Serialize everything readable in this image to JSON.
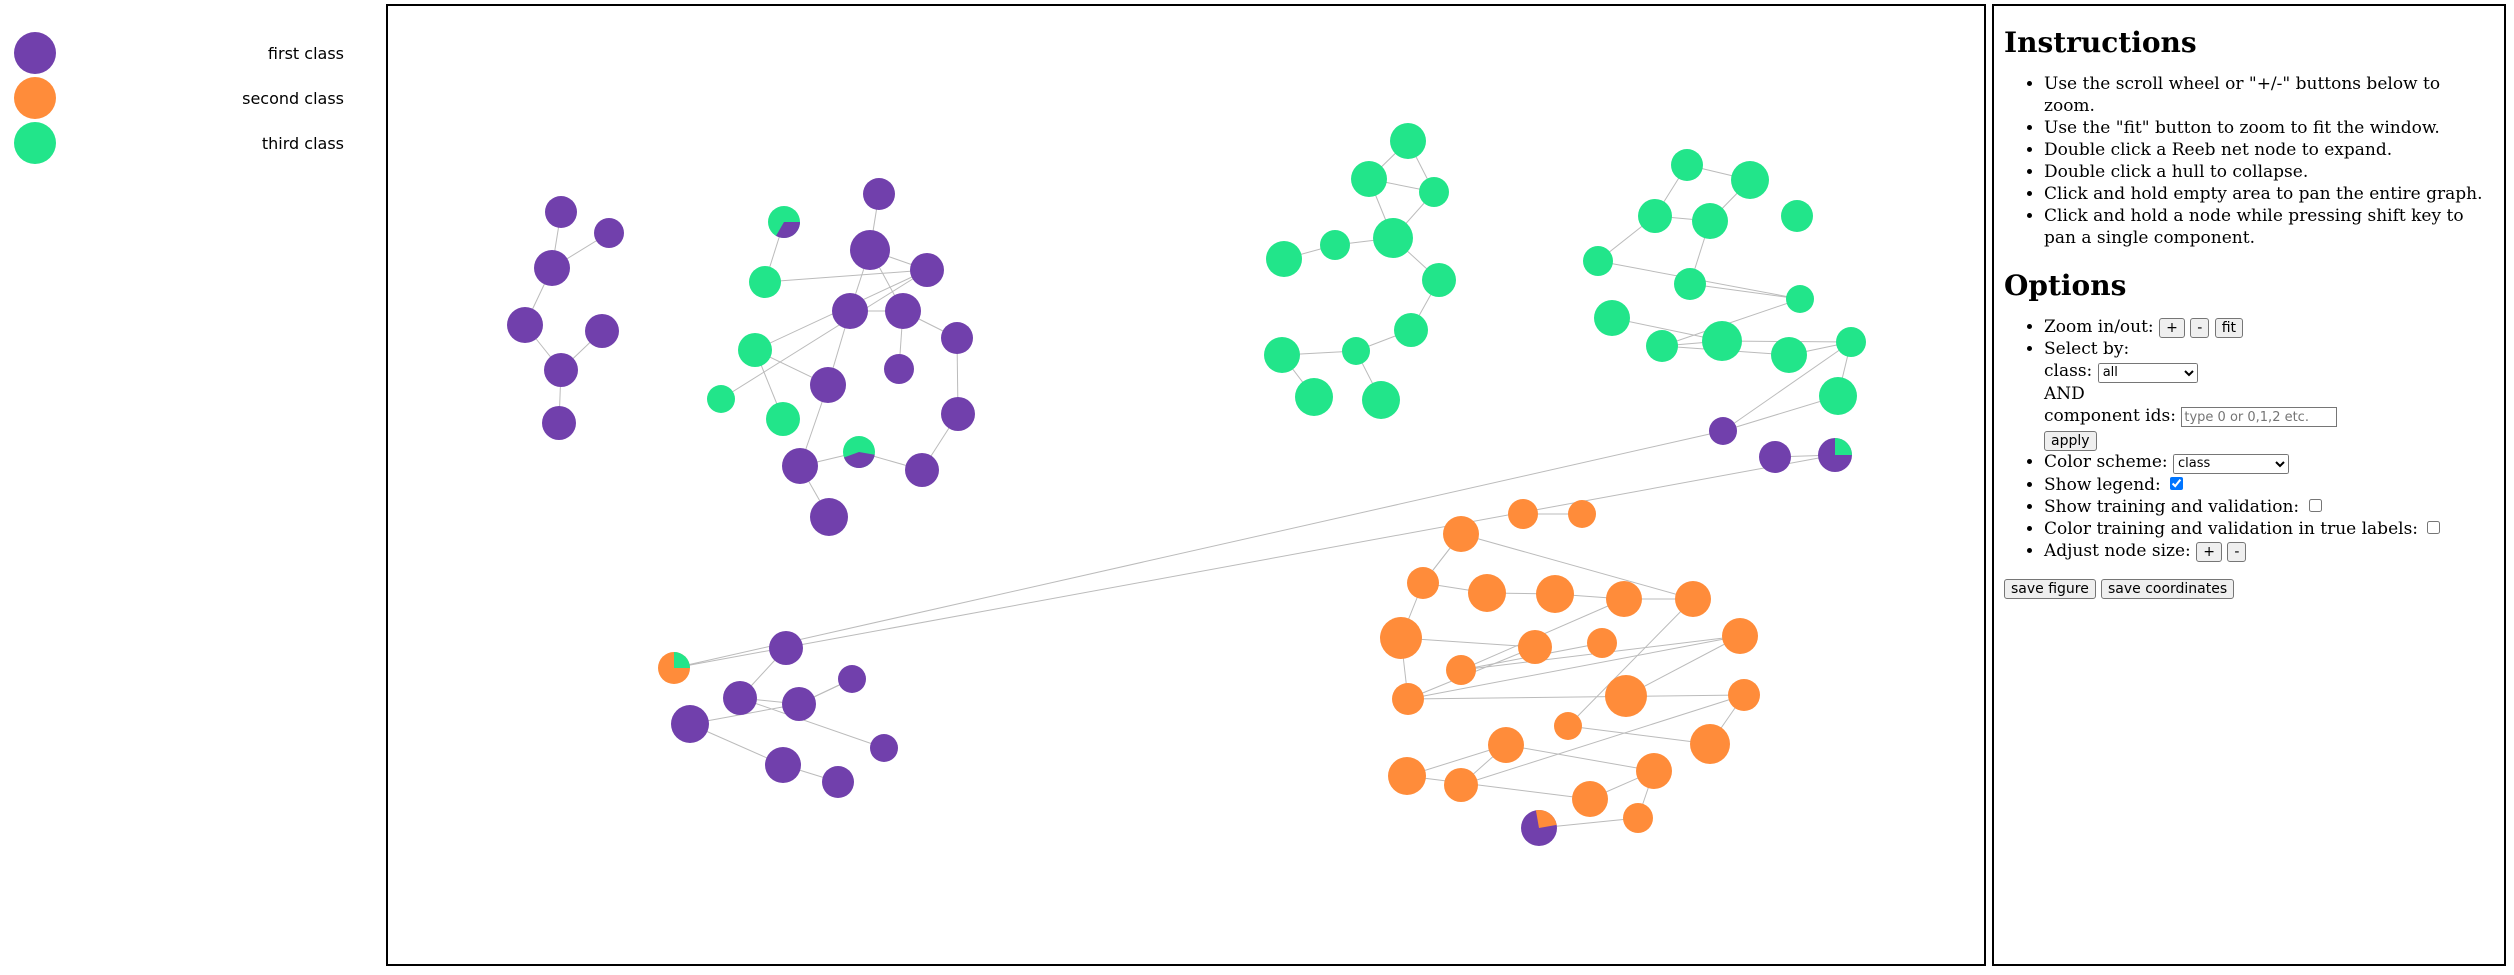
{
  "colors": {
    "first": "#7140ac",
    "second": "#ff8c3a",
    "third": "#22e58a",
    "edge": "#bbbbbb"
  },
  "legend": [
    {
      "label": "first class",
      "color": "#7140ac"
    },
    {
      "label": "second class",
      "color": "#ff8c3a"
    },
    {
      "label": "third class",
      "color": "#22e58a"
    }
  ],
  "instructions": {
    "title": "Instructions",
    "items": [
      "Use the scroll wheel or \"+/-\" buttons below to zoom.",
      "Use the \"fit\" button to zoom to fit the window.",
      "Double click a Reeb net node to expand.",
      "Double click a hull to collapse.",
      "Click and hold empty area to pan the entire graph.",
      "Click and hold a node while pressing shift key to pan a single component."
    ]
  },
  "options": {
    "title": "Options",
    "zoom_label": "Zoom in/out:",
    "zoom_in": "+",
    "zoom_out": "-",
    "fit": "fit",
    "select_by_label": "Select by:",
    "class_label": "class:",
    "class_value": "all",
    "and_label": "AND",
    "component_ids_label": "component ids:",
    "component_ids_placeholder": "type 0 or 0,1,2 etc.",
    "apply": "apply",
    "color_scheme_label": "Color scheme:",
    "color_scheme_value": "class",
    "show_legend_label": "Show legend:",
    "show_legend_checked": true,
    "show_training_label": "Show training and validation:",
    "color_training_label": "Color training and validation in true labels:",
    "node_size_label": "Adjust node size:",
    "node_size_plus": "+",
    "node_size_minus": "-",
    "save_figure": "save figure",
    "save_coordinates": "save coordinates"
  }
}
